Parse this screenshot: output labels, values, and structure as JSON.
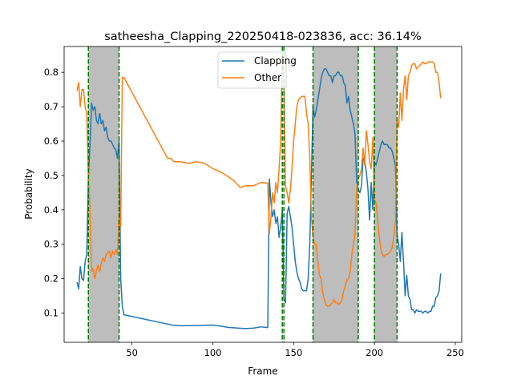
{
  "chart_data": {
    "type": "line",
    "title": "satheesha_Clapping_220250418-023836,  acc: 36.14%",
    "xlabel": "Frame",
    "ylabel": "Probability",
    "xlim": [
      8,
      254
    ],
    "ylim": [
      0.015,
      0.875
    ],
    "xticks": [
      50,
      100,
      150,
      200,
      250
    ],
    "yticks": [
      0.1,
      0.2,
      0.3,
      0.4,
      0.5,
      0.6,
      0.7,
      0.8
    ],
    "legend_position": "upper center",
    "shaded_regions": [
      [
        23,
        42
      ],
      [
        162,
        190
      ],
      [
        200,
        214
      ]
    ],
    "vertical_lines": [
      23,
      42,
      143,
      144,
      162,
      190,
      200,
      214
    ],
    "colors": {
      "Clapping": "#1f77b4",
      "Other": "#ff7f0e",
      "shade": "#bdbdbd",
      "vline": "#007500"
    },
    "series": [
      {
        "name": "Clapping",
        "points": [
          [
            16,
            0.19
          ],
          [
            17,
            0.17
          ],
          [
            18,
            0.235
          ],
          [
            19,
            0.2
          ],
          [
            20,
            0.195
          ],
          [
            21,
            0.25
          ],
          [
            22,
            0.27
          ],
          [
            23,
            0.49
          ],
          [
            24,
            0.59
          ],
          [
            25,
            0.71
          ],
          [
            26,
            0.69
          ],
          [
            27,
            0.7
          ],
          [
            28,
            0.66
          ],
          [
            29,
            0.65
          ],
          [
            30,
            0.68
          ],
          [
            31,
            0.65
          ],
          [
            32,
            0.66
          ],
          [
            33,
            0.63
          ],
          [
            34,
            0.64
          ],
          [
            35,
            0.61
          ],
          [
            36,
            0.6
          ],
          [
            37,
            0.6
          ],
          [
            38,
            0.59
          ],
          [
            39,
            0.58
          ],
          [
            40,
            0.575
          ],
          [
            41,
            0.55
          ],
          [
            42,
            0.6
          ],
          [
            43,
            0.2
          ],
          [
            44,
            0.12
          ],
          [
            45,
            0.095
          ],
          [
            75,
            0.065
          ],
          [
            80,
            0.063
          ],
          [
            90,
            0.064
          ],
          [
            100,
            0.065
          ],
          [
            105,
            0.062
          ],
          [
            110,
            0.058
          ],
          [
            120,
            0.055
          ],
          [
            125,
            0.056
          ],
          [
            130,
            0.06
          ],
          [
            133,
            0.058
          ],
          [
            134,
            0.058
          ],
          [
            135,
            0.49
          ],
          [
            136,
            0.42
          ],
          [
            137,
            0.38
          ],
          [
            138,
            0.4
          ],
          [
            139,
            0.36
          ],
          [
            140,
            0.38
          ],
          [
            141,
            0.32
          ],
          [
            142,
            0.35
          ],
          [
            143,
            0.4
          ],
          [
            144,
            0.14
          ],
          [
            145,
            0.13
          ],
          [
            146,
            0.39
          ],
          [
            147,
            0.41
          ],
          [
            148,
            0.38
          ],
          [
            149,
            0.35
          ],
          [
            150,
            0.3
          ],
          [
            151,
            0.25
          ],
          [
            152,
            0.22
          ],
          [
            153,
            0.2
          ],
          [
            154,
            0.19
          ],
          [
            155,
            0.17
          ],
          [
            156,
            0.165
          ],
          [
            157,
            0.165
          ],
          [
            158,
            0.165
          ],
          [
            159,
            0.2
          ],
          [
            160,
            0.3
          ],
          [
            161,
            0.5
          ],
          [
            162,
            0.7
          ],
          [
            163,
            0.67
          ],
          [
            164,
            0.69
          ],
          [
            165,
            0.72
          ],
          [
            166,
            0.75
          ],
          [
            167,
            0.78
          ],
          [
            168,
            0.8
          ],
          [
            169,
            0.81
          ],
          [
            170,
            0.81
          ],
          [
            171,
            0.8
          ],
          [
            172,
            0.79
          ],
          [
            173,
            0.79
          ],
          [
            174,
            0.77
          ],
          [
            175,
            0.79
          ],
          [
            176,
            0.79
          ],
          [
            177,
            0.8
          ],
          [
            178,
            0.8
          ],
          [
            179,
            0.79
          ],
          [
            180,
            0.79
          ],
          [
            181,
            0.77
          ],
          [
            182,
            0.76
          ],
          [
            183,
            0.71
          ],
          [
            184,
            0.73
          ],
          [
            185,
            0.69
          ],
          [
            186,
            0.67
          ],
          [
            187,
            0.65
          ],
          [
            188,
            0.62
          ],
          [
            189,
            0.48
          ],
          [
            190,
            0.46
          ],
          [
            191,
            0.45
          ],
          [
            192,
            0.47
          ],
          [
            193,
            0.55
          ],
          [
            194,
            0.54
          ],
          [
            195,
            0.51
          ],
          [
            196,
            0.46
          ],
          [
            197,
            0.37
          ],
          [
            198,
            0.48
          ],
          [
            199,
            0.4
          ],
          [
            200,
            0.54
          ],
          [
            201,
            0.53
          ],
          [
            202,
            0.55
          ],
          [
            203,
            0.57
          ],
          [
            204,
            0.59
          ],
          [
            205,
            0.6
          ],
          [
            206,
            0.59
          ],
          [
            207,
            0.59
          ],
          [
            208,
            0.59
          ],
          [
            209,
            0.58
          ],
          [
            210,
            0.58
          ],
          [
            211,
            0.57
          ],
          [
            212,
            0.55
          ],
          [
            213,
            0.53
          ],
          [
            214,
            0.33
          ],
          [
            215,
            0.3
          ],
          [
            216,
            0.25
          ],
          [
            217,
            0.335
          ],
          [
            218,
            0.25
          ],
          [
            219,
            0.15
          ],
          [
            220,
            0.21
          ],
          [
            221,
            0.15
          ],
          [
            222,
            0.14
          ],
          [
            223,
            0.11
          ],
          [
            224,
            0.11
          ],
          [
            225,
            0.1
          ],
          [
            226,
            0.11
          ],
          [
            227,
            0.105
          ],
          [
            228,
            0.105
          ],
          [
            229,
            0.105
          ],
          [
            230,
            0.1
          ],
          [
            231,
            0.105
          ],
          [
            232,
            0.105
          ],
          [
            233,
            0.1
          ],
          [
            234,
            0.105
          ],
          [
            235,
            0.105
          ],
          [
            236,
            0.12
          ],
          [
            237,
            0.12
          ],
          [
            238,
            0.145
          ],
          [
            239,
            0.15
          ],
          [
            240,
            0.165
          ],
          [
            241,
            0.215
          ]
        ]
      },
      {
        "name": "Other",
        "points": [
          [
            16,
            0.745
          ],
          [
            17,
            0.77
          ],
          [
            18,
            0.7
          ],
          [
            19,
            0.75
          ],
          [
            20,
            0.75
          ],
          [
            21,
            0.7
          ],
          [
            22,
            0.68
          ],
          [
            23,
            0.5
          ],
          [
            24,
            0.4
          ],
          [
            25,
            0.22
          ],
          [
            26,
            0.23
          ],
          [
            27,
            0.2
          ],
          [
            28,
            0.225
          ],
          [
            29,
            0.24
          ],
          [
            30,
            0.22
          ],
          [
            31,
            0.245
          ],
          [
            32,
            0.26
          ],
          [
            33,
            0.25
          ],
          [
            34,
            0.27
          ],
          [
            35,
            0.275
          ],
          [
            36,
            0.28
          ],
          [
            37,
            0.26
          ],
          [
            38,
            0.28
          ],
          [
            39,
            0.27
          ],
          [
            40,
            0.285
          ],
          [
            41,
            0.27
          ],
          [
            42,
            0.38
          ],
          [
            43,
            0.35
          ],
          [
            44,
            0.785
          ],
          [
            45,
            0.785
          ],
          [
            72,
            0.55
          ],
          [
            74,
            0.55
          ],
          [
            76,
            0.54
          ],
          [
            80,
            0.54
          ],
          [
            85,
            0.535
          ],
          [
            90,
            0.54
          ],
          [
            95,
            0.535
          ],
          [
            100,
            0.52
          ],
          [
            105,
            0.51
          ],
          [
            110,
            0.495
          ],
          [
            113,
            0.485
          ],
          [
            115,
            0.475
          ],
          [
            117,
            0.465
          ],
          [
            120,
            0.47
          ],
          [
            125,
            0.47
          ],
          [
            130,
            0.48
          ],
          [
            133,
            0.478
          ],
          [
            134,
            0.478
          ],
          [
            135,
            0.33
          ],
          [
            136,
            0.38
          ],
          [
            137,
            0.45
          ],
          [
            138,
            0.42
          ],
          [
            139,
            0.48
          ],
          [
            140,
            0.45
          ],
          [
            141,
            0.52
          ],
          [
            142,
            0.6
          ],
          [
            143,
            0.85
          ],
          [
            144,
            0.76
          ],
          [
            145,
            0.47
          ],
          [
            146,
            0.45
          ],
          [
            147,
            0.42
          ],
          [
            148,
            0.46
          ],
          [
            149,
            0.52
          ],
          [
            150,
            0.6
          ],
          [
            151,
            0.65
          ],
          [
            152,
            0.7
          ],
          [
            153,
            0.72
          ],
          [
            154,
            0.725
          ],
          [
            155,
            0.73
          ],
          [
            156,
            0.73
          ],
          [
            157,
            0.73
          ],
          [
            158,
            0.68
          ],
          [
            159,
            0.65
          ],
          [
            160,
            0.55
          ],
          [
            161,
            0.38
          ],
          [
            162,
            0.32
          ],
          [
            163,
            0.3
          ],
          [
            164,
            0.3
          ],
          [
            165,
            0.25
          ],
          [
            166,
            0.21
          ],
          [
            167,
            0.2
          ],
          [
            168,
            0.16
          ],
          [
            169,
            0.14
          ],
          [
            170,
            0.125
          ],
          [
            171,
            0.12
          ],
          [
            172,
            0.12
          ],
          [
            173,
            0.125
          ],
          [
            174,
            0.13
          ],
          [
            175,
            0.14
          ],
          [
            176,
            0.13
          ],
          [
            177,
            0.13
          ],
          [
            178,
            0.125
          ],
          [
            179,
            0.13
          ],
          [
            180,
            0.14
          ],
          [
            181,
            0.165
          ],
          [
            182,
            0.18
          ],
          [
            183,
            0.195
          ],
          [
            184,
            0.2
          ],
          [
            185,
            0.22
          ],
          [
            186,
            0.27
          ],
          [
            187,
            0.3
          ],
          [
            188,
            0.33
          ],
          [
            189,
            0.46
          ],
          [
            190,
            0.49
          ],
          [
            191,
            0.5
          ],
          [
            192,
            0.52
          ],
          [
            193,
            0.58
          ],
          [
            194,
            0.53
          ],
          [
            195,
            0.63
          ],
          [
            196,
            0.59
          ],
          [
            197,
            0.54
          ],
          [
            198,
            0.52
          ],
          [
            199,
            0.61
          ],
          [
            200,
            0.43
          ],
          [
            201,
            0.42
          ],
          [
            202,
            0.37
          ],
          [
            203,
            0.32
          ],
          [
            204,
            0.285
          ],
          [
            205,
            0.27
          ],
          [
            206,
            0.265
          ],
          [
            207,
            0.27
          ],
          [
            208,
            0.27
          ],
          [
            209,
            0.275
          ],
          [
            210,
            0.28
          ],
          [
            211,
            0.29
          ],
          [
            212,
            0.32
          ],
          [
            213,
            0.37
          ],
          [
            214,
            0.66
          ],
          [
            215,
            0.64
          ],
          [
            216,
            0.74
          ],
          [
            217,
            0.66
          ],
          [
            218,
            0.75
          ],
          [
            219,
            0.79
          ],
          [
            220,
            0.72
          ],
          [
            221,
            0.79
          ],
          [
            222,
            0.8
          ],
          [
            223,
            0.82
          ],
          [
            224,
            0.825
          ],
          [
            225,
            0.825
          ],
          [
            226,
            0.81
          ],
          [
            227,
            0.815
          ],
          [
            228,
            0.82
          ],
          [
            229,
            0.825
          ],
          [
            230,
            0.83
          ],
          [
            231,
            0.825
          ],
          [
            232,
            0.825
          ],
          [
            233,
            0.83
          ],
          [
            234,
            0.83
          ],
          [
            235,
            0.83
          ],
          [
            236,
            0.83
          ],
          [
            237,
            0.825
          ],
          [
            238,
            0.8
          ],
          [
            239,
            0.8
          ],
          [
            240,
            0.77
          ],
          [
            241,
            0.725
          ]
        ]
      }
    ]
  }
}
